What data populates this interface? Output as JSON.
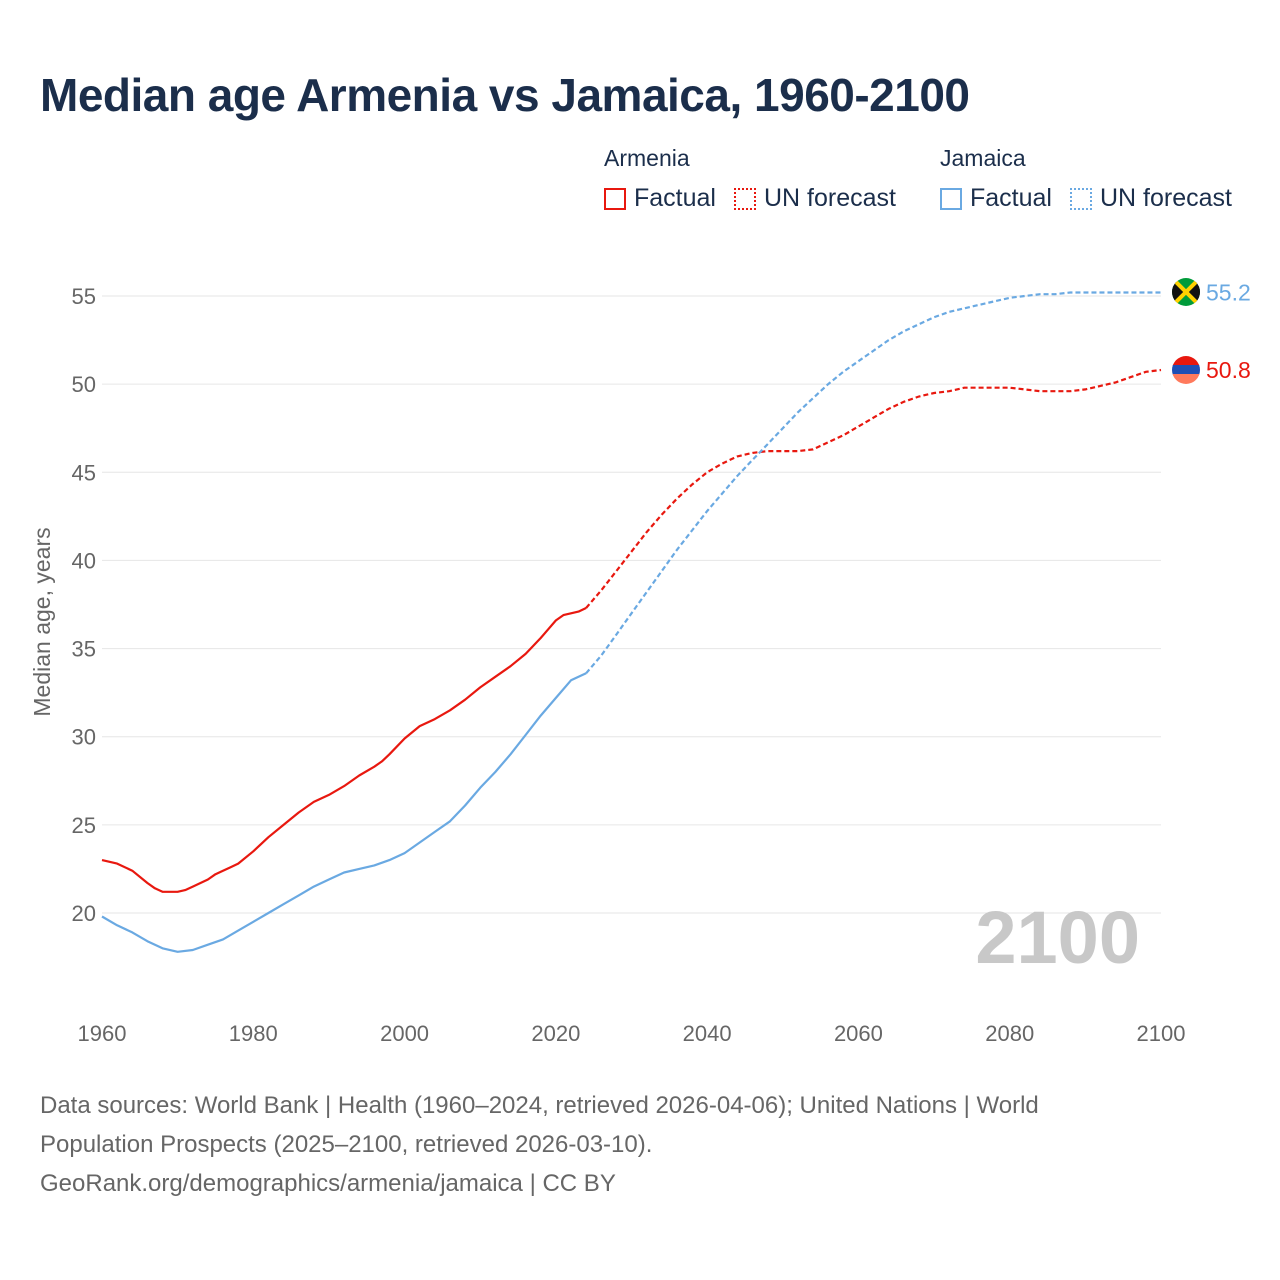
{
  "title": "Median age Armenia vs Jamaica, 1960-2100",
  "legend": {
    "groups": [
      {
        "name": "Armenia",
        "factual_label": "Factual",
        "forecast_label": "UN forecast",
        "color": "#e8180f"
      },
      {
        "name": "Jamaica",
        "factual_label": "Factual",
        "forecast_label": "UN forecast",
        "color": "#6aa9e2"
      }
    ]
  },
  "year_watermark": "2100",
  "source": {
    "line1": "Data sources: World Bank | Health (1960–2024, retrieved 2026-04-06); United Nations | World",
    "line2": "Population Prospects (2025–2100, retrieved 2026-03-10).",
    "line3": "GeoRank.org/demographics/armenia/jamaica | CC BY"
  },
  "chart_data": {
    "type": "line",
    "title": "Median age Armenia vs Jamaica, 1960-2100",
    "xlabel": "",
    "ylabel": "Median age, years",
    "xlim": [
      1960,
      2100
    ],
    "ylim": [
      15,
      57
    ],
    "xticks": [
      1960,
      1980,
      2000,
      2020,
      2040,
      2060,
      2080,
      2100
    ],
    "yticks": [
      20,
      25,
      30,
      35,
      40,
      45,
      50,
      55
    ],
    "grid": true,
    "legend_position": "top-right",
    "forecast_start": 2024,
    "series": [
      {
        "name": "Armenia",
        "color": "#e8180f",
        "end_label": "50.8",
        "x": [
          1960,
          1962,
          1964,
          1966,
          1967,
          1968,
          1969,
          1970,
          1971,
          1972,
          1974,
          1975,
          1976,
          1977,
          1978,
          1980,
          1982,
          1984,
          1986,
          1988,
          1990,
          1992,
          1994,
          1996,
          1997,
          1998,
          2000,
          2002,
          2004,
          2006,
          2008,
          2010,
          2012,
          2014,
          2016,
          2018,
          2019,
          2020,
          2021,
          2022,
          2023,
          2024,
          2026,
          2028,
          2030,
          2032,
          2034,
          2036,
          2038,
          2040,
          2042,
          2044,
          2046,
          2048,
          2050,
          2052,
          2054,
          2056,
          2058,
          2060,
          2062,
          2064,
          2066,
          2068,
          2070,
          2072,
          2074,
          2076,
          2078,
          2080,
          2082,
          2084,
          2086,
          2088,
          2090,
          2092,
          2094,
          2096,
          2098,
          2100
        ],
        "y": [
          23.0,
          22.8,
          22.4,
          21.7,
          21.4,
          21.2,
          21.2,
          21.2,
          21.3,
          21.5,
          21.9,
          22.2,
          22.4,
          22.6,
          22.8,
          23.5,
          24.3,
          25.0,
          25.7,
          26.3,
          26.7,
          27.2,
          27.8,
          28.3,
          28.6,
          29.0,
          29.9,
          30.6,
          31.0,
          31.5,
          32.1,
          32.8,
          33.4,
          34.0,
          34.7,
          35.6,
          36.1,
          36.6,
          36.9,
          37.0,
          37.1,
          37.3,
          38.3,
          39.4,
          40.5,
          41.6,
          42.6,
          43.5,
          44.3,
          45.0,
          45.5,
          45.9,
          46.1,
          46.2,
          46.2,
          46.2,
          46.3,
          46.7,
          47.1,
          47.6,
          48.1,
          48.6,
          49.0,
          49.3,
          49.5,
          49.6,
          49.8,
          49.8,
          49.8,
          49.8,
          49.7,
          49.6,
          49.6,
          49.6,
          49.7,
          49.9,
          50.1,
          50.4,
          50.7,
          50.8
        ]
      },
      {
        "name": "Jamaica",
        "color": "#6aa9e2",
        "end_label": "55.2",
        "x": [
          1960,
          1962,
          1964,
          1966,
          1968,
          1970,
          1972,
          1974,
          1976,
          1978,
          1980,
          1982,
          1984,
          1986,
          1988,
          1990,
          1992,
          1994,
          1996,
          1998,
          2000,
          2002,
          2004,
          2006,
          2008,
          2010,
          2012,
          2014,
          2016,
          2018,
          2020,
          2022,
          2024,
          2026,
          2028,
          2030,
          2032,
          2034,
          2036,
          2038,
          2040,
          2042,
          2044,
          2046,
          2048,
          2050,
          2052,
          2054,
          2056,
          2058,
          2060,
          2062,
          2064,
          2066,
          2068,
          2070,
          2072,
          2074,
          2076,
          2078,
          2080,
          2082,
          2084,
          2086,
          2088,
          2090,
          2092,
          2094,
          2096,
          2098,
          2100
        ],
        "y": [
          19.8,
          19.3,
          18.9,
          18.4,
          18.0,
          17.8,
          17.9,
          18.2,
          18.5,
          19.0,
          19.5,
          20.0,
          20.5,
          21.0,
          21.5,
          21.9,
          22.3,
          22.5,
          22.7,
          23.0,
          23.4,
          24.0,
          24.6,
          25.2,
          26.1,
          27.1,
          28.0,
          29.0,
          30.1,
          31.2,
          32.2,
          33.2,
          33.6,
          34.6,
          35.8,
          37.0,
          38.2,
          39.4,
          40.6,
          41.7,
          42.8,
          43.8,
          44.8,
          45.7,
          46.6,
          47.5,
          48.4,
          49.2,
          50.0,
          50.7,
          51.3,
          51.9,
          52.5,
          53.0,
          53.4,
          53.8,
          54.1,
          54.3,
          54.5,
          54.7,
          54.9,
          55.0,
          55.1,
          55.1,
          55.2,
          55.2,
          55.2,
          55.2,
          55.2,
          55.2,
          55.2
        ]
      }
    ]
  }
}
